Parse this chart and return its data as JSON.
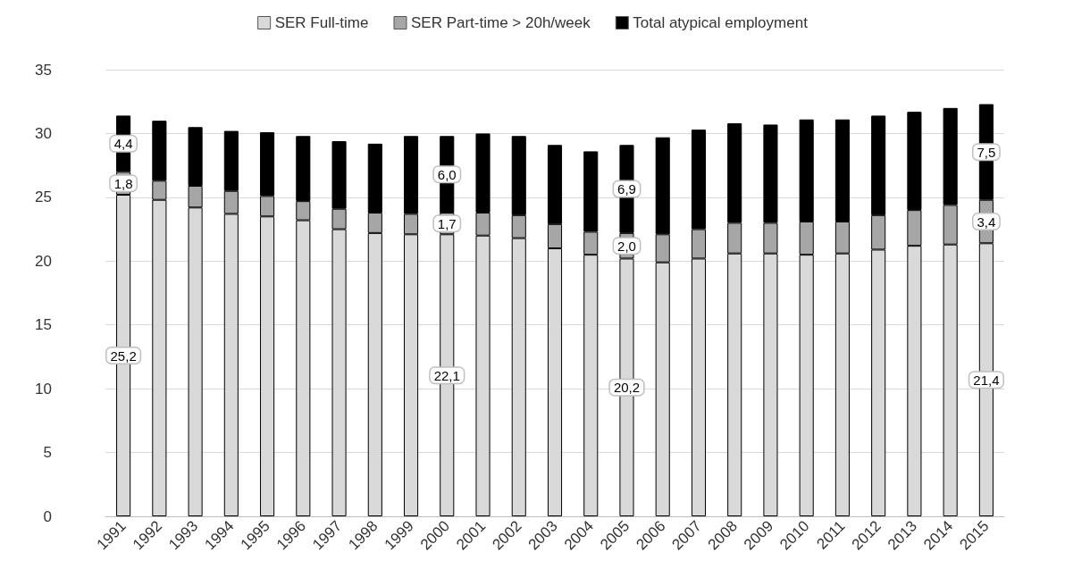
{
  "chart_data": {
    "type": "bar",
    "stacked": true,
    "categories": [
      "1991",
      "1992",
      "1993",
      "1994",
      "1995",
      "1996",
      "1997",
      "1998",
      "1999",
      "2000",
      "2001",
      "2002",
      "2003",
      "2004",
      "2005",
      "2006",
      "2007",
      "2008",
      "2009",
      "2010",
      "2011",
      "2012",
      "2013",
      "2014",
      "2015"
    ],
    "series": [
      {
        "name": "SER Full-time",
        "color": "#d9d9d9",
        "values": [
          25.2,
          24.8,
          24.2,
          23.7,
          23.5,
          23.2,
          22.5,
          22.2,
          22.1,
          22.1,
          22.0,
          21.8,
          21.0,
          20.5,
          20.2,
          19.9,
          20.2,
          20.6,
          20.6,
          20.5,
          20.6,
          20.9,
          21.2,
          21.3,
          21.4
        ],
        "value_labels": [
          "25,2",
          null,
          null,
          null,
          null,
          null,
          null,
          null,
          null,
          "22,1",
          null,
          null,
          null,
          null,
          "20,2",
          null,
          null,
          null,
          null,
          null,
          null,
          null,
          null,
          null,
          "21,4"
        ]
      },
      {
        "name": "SER Part-time > 20h/week",
        "color": "#a6a6a6",
        "values": [
          1.8,
          1.5,
          1.7,
          1.8,
          1.6,
          1.5,
          1.6,
          1.6,
          1.6,
          1.7,
          1.8,
          1.8,
          1.9,
          1.8,
          2.0,
          2.2,
          2.3,
          2.4,
          2.4,
          2.6,
          2.5,
          2.7,
          2.8,
          3.1,
          3.4
        ],
        "value_labels": [
          "1,8",
          null,
          null,
          null,
          null,
          null,
          null,
          null,
          null,
          "1,7",
          null,
          null,
          null,
          null,
          "2,0",
          null,
          null,
          null,
          null,
          null,
          null,
          null,
          null,
          null,
          "3,4"
        ]
      },
      {
        "name": "Total atypical employment",
        "color": "#000000",
        "values": [
          4.4,
          4.7,
          4.6,
          4.7,
          5.0,
          5.1,
          5.3,
          5.4,
          6.1,
          6.0,
          6.2,
          6.2,
          6.2,
          6.3,
          6.9,
          7.6,
          7.8,
          7.8,
          7.7,
          8.0,
          8.0,
          7.8,
          7.7,
          7.6,
          7.5
        ],
        "value_labels": [
          "4,4",
          null,
          null,
          null,
          null,
          null,
          null,
          null,
          null,
          "6,0",
          null,
          null,
          null,
          null,
          "6,9",
          null,
          null,
          null,
          null,
          null,
          null,
          null,
          null,
          null,
          "7,5"
        ]
      }
    ],
    "ylim": [
      0,
      35
    ],
    "yticks": [
      0,
      5,
      10,
      15,
      20,
      25,
      30,
      35
    ],
    "grid": "y",
    "legend": "top"
  }
}
